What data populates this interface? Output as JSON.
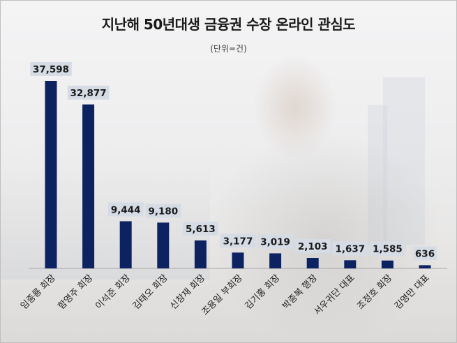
{
  "chart_data": {
    "type": "bar",
    "title": "지난해 50년대생 금융권 수장 온라인 관심도",
    "subtitle": "(단위=건)",
    "categories": [
      "임종룡 회장",
      "함영주 회장",
      "이석준 회장",
      "김태오 회장",
      "신창재 회장",
      "조용일 부회장",
      "김기홍 회장",
      "박종복 행장",
      "서우귀단 대표",
      "조정호 회장",
      "김영만 대표"
    ],
    "values": [
      37598,
      32877,
      9444,
      9180,
      5613,
      3177,
      3019,
      2103,
      1637,
      1585,
      636
    ],
    "data_labels": [
      "37,598",
      "32,877",
      "9,444",
      "9,180",
      "5,613",
      "3,177",
      "3,019",
      "2,103",
      "1,637",
      "1,585",
      "636"
    ],
    "ylim": [
      0,
      40000
    ],
    "grid": false,
    "legend": "none",
    "bar_color": "#0d2260",
    "label_box_color": "#d6dce5"
  }
}
